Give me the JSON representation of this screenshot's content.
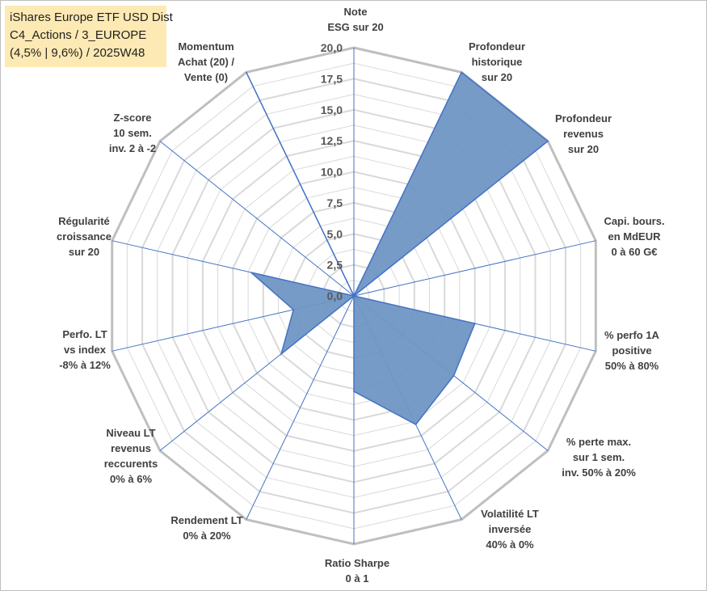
{
  "title_box": {
    "line1": "iShares Europe ETF USD Dist",
    "line2": "C4_Actions / 3_EUROPE",
    "line3": "(4,5% | 9,6%) / 2025W48"
  },
  "chart_data": {
    "type": "radar",
    "rmax": 20,
    "ticks": [
      "0,0",
      "2,5",
      "5,0",
      "7,5",
      "10,0",
      "12,5",
      "15,0",
      "17,5",
      "20,0"
    ],
    "grid_rings": [
      1.25,
      2.5,
      3.75,
      5,
      6.25,
      7.5,
      8.75,
      10,
      11.25,
      12.5,
      13.75,
      15,
      16.25,
      17.5,
      18.75,
      20
    ],
    "colors": {
      "fill": "#7096c4",
      "stroke": "#4472c4",
      "grid": "#d9d9d9",
      "outer": "#bfbfbf",
      "spoke": "#4472c4"
    },
    "axes": [
      {
        "label": [
          "Note",
          "ESG sur 20"
        ],
        "value": 0
      },
      {
        "label": [
          "Profondeur",
          "historique",
          "sur 20"
        ],
        "value": 20
      },
      {
        "label": [
          "Profondeur",
          "revenus",
          "sur 20"
        ],
        "value": 20
      },
      {
        "label": [
          "Capi. bours.",
          "en MdEUR",
          "0 à 60 G€"
        ],
        "value": 0
      },
      {
        "label": [
          "% perfo 1A",
          "positive",
          "50% à 80%"
        ],
        "value": 10
      },
      {
        "label": [
          "% perte max.",
          "sur 1 sem.",
          "inv. 50% à 20%"
        ],
        "value": 10.3
      },
      {
        "label": [
          "Volatilité LT",
          "inversée",
          "40% à 0%"
        ],
        "value": 11.5
      },
      {
        "label": [
          "Ratio Sharpe",
          "0 à 1"
        ],
        "value": 7.7
      },
      {
        "label": [
          "Rendement LT",
          "0% à 20%"
        ],
        "value": 0
      },
      {
        "label": [
          "Niveau LT",
          "revenus",
          "reccurents",
          "0% à 6%"
        ],
        "value": 7.5
      },
      {
        "label": [
          "Perfo. LT",
          "vs index",
          "-8% à 12%"
        ],
        "value": 5
      },
      {
        "label": [
          "Régularité",
          "croissance",
          "sur 20"
        ],
        "value": 8.5
      },
      {
        "label": [
          "Z-score",
          "10 sem.",
          "inv. 2 à -2"
        ],
        "value": 0
      },
      {
        "label": [
          "Momentum",
          "Achat (20) /",
          "Vente (0)"
        ],
        "value": 20
      }
    ]
  }
}
